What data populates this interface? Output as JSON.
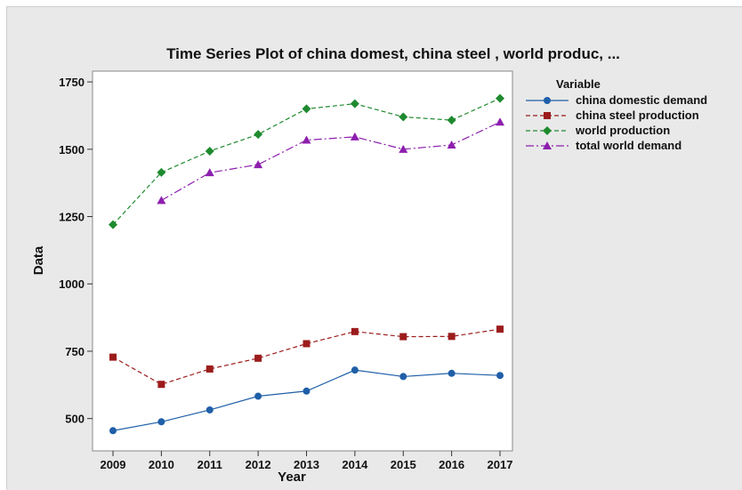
{
  "chart_data": {
    "type": "line",
    "title": "Time Series Plot of china domest, china steel , world produc, ...",
    "xlabel": "Year",
    "ylabel": "Data",
    "x": [
      2009,
      2010,
      2011,
      2012,
      2013,
      2014,
      2015,
      2016,
      2017
    ],
    "xticks": [
      "2009",
      "2010",
      "2011",
      "2012",
      "2013",
      "2014",
      "2015",
      "2016",
      "2017"
    ],
    "yticks": [
      500,
      750,
      1000,
      1250,
      1500,
      1750
    ],
    "ylim": [
      380,
      1790
    ],
    "grid": false,
    "legend": {
      "title": "Variable",
      "position": "right"
    },
    "series": [
      {
        "name": "china domestic demand",
        "color": "#1f5fa8",
        "marker": "circle",
        "dash": "solid",
        "values": [
          455,
          488,
          532,
          583,
          602,
          680,
          656,
          668,
          660
        ]
      },
      {
        "name": "china steel production",
        "color": "#9c1c1c",
        "marker": "square",
        "dash": "dashed",
        "values": [
          728,
          627,
          684,
          724,
          778,
          823,
          804,
          805,
          832
        ]
      },
      {
        "name": "world production",
        "color": "#1e8a2e",
        "marker": "diamond",
        "dash": "dashed",
        "values": [
          1220,
          1414,
          1493,
          1555,
          1650,
          1669,
          1620,
          1608,
          1689
        ]
      },
      {
        "name": "total world demand",
        "color": "#8d1fae",
        "marker": "triangle",
        "dash": "dashdot",
        "values": [
          null,
          1310,
          1413,
          1443,
          1534,
          1546,
          1500,
          1516,
          1601
        ]
      }
    ]
  }
}
